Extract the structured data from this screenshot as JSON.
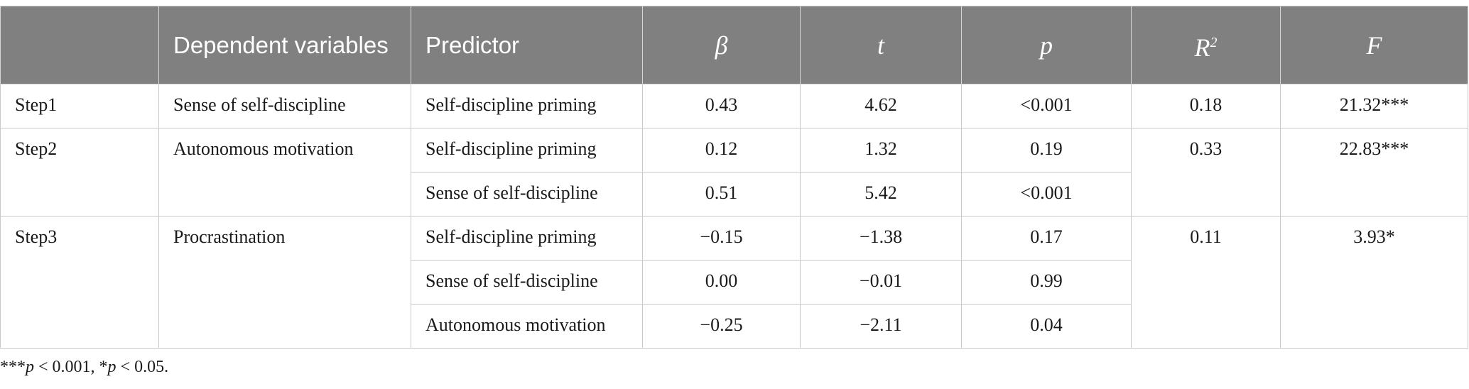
{
  "table": {
    "headers": {
      "step": "",
      "dependent": "Dependent variables",
      "predictor": "Predictor",
      "beta": "β",
      "t": "t",
      "p": "p",
      "r2": "R",
      "r2_sup": "2",
      "f": "F"
    },
    "rows": [
      {
        "step": "Step1",
        "dependent": "Sense of self-discipline",
        "predictors": [
          {
            "name": "Self-discipline priming",
            "beta": "0.43",
            "t": "4.62",
            "p": "<0.001"
          }
        ],
        "r2": "0.18",
        "f": "21.32***"
      },
      {
        "step": "Step2",
        "dependent": "Autonomous motivation",
        "predictors": [
          {
            "name": "Self-discipline priming",
            "beta": "0.12",
            "t": "1.32",
            "p": "0.19"
          },
          {
            "name": "Sense of self-discipline",
            "beta": "0.51",
            "t": "5.42",
            "p": "<0.001"
          }
        ],
        "r2": "0.33",
        "f": "22.83***"
      },
      {
        "step": "Step3",
        "dependent": "Procrastination",
        "predictors": [
          {
            "name": "Self-discipline priming",
            "beta": "−0.15",
            "t": "−1.38",
            "p": "0.17"
          },
          {
            "name": "Sense of self-discipline",
            "beta": "0.00",
            "t": "−0.01",
            "p": "0.99"
          },
          {
            "name": "Autonomous motivation",
            "beta": "−0.25",
            "t": "−2.11",
            "p": "0.04"
          }
        ],
        "r2": "0.11",
        "f": "3.93*"
      }
    ]
  },
  "footnote": {
    "stars1": "***",
    "p1": "p",
    "rest1": " < 0.001, *",
    "p2": "p",
    "rest2": " < 0.05."
  }
}
